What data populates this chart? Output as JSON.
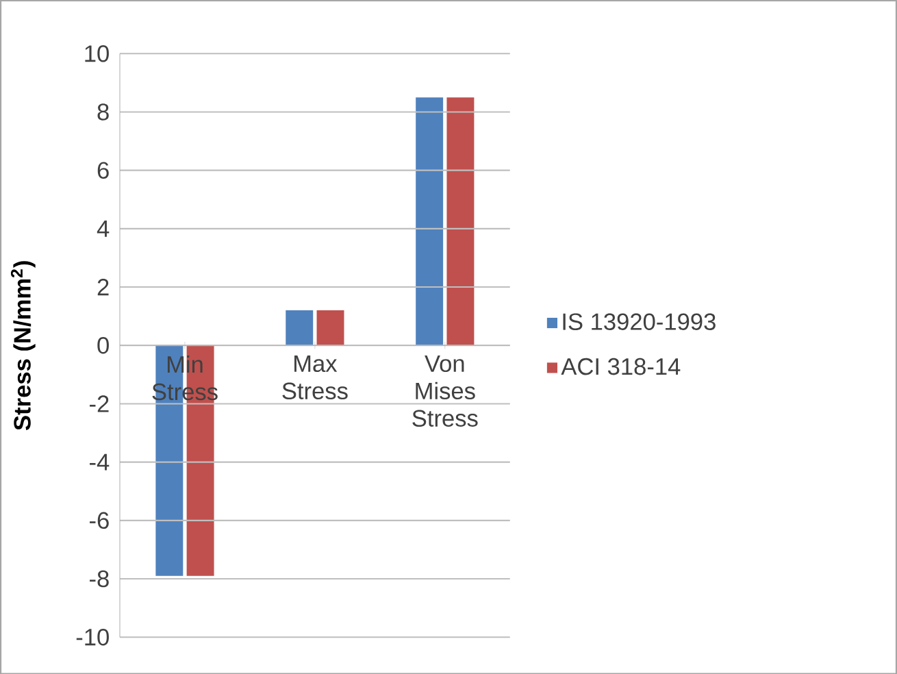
{
  "chart_data": {
    "type": "bar",
    "ylabel": "Stress (N/mm$^{2}$)",
    "categories": [
      "Min Stress",
      "Max Stress",
      "Von Mises Stress"
    ],
    "series": [
      {
        "name": "IS 13920-1993",
        "color": "#4f81bd",
        "values": [
          -7.9,
          1.2,
          8.5
        ]
      },
      {
        "name": "ACI 318-14",
        "color": "#c0504d",
        "values": [
          -7.9,
          1.2,
          8.5
        ]
      }
    ],
    "ylim": [
      -10,
      10
    ],
    "yticks": [
      -10,
      -8,
      -6,
      -4,
      -2,
      0,
      2,
      4,
      6,
      8,
      10
    ],
    "grid": "y",
    "legend": "right"
  }
}
